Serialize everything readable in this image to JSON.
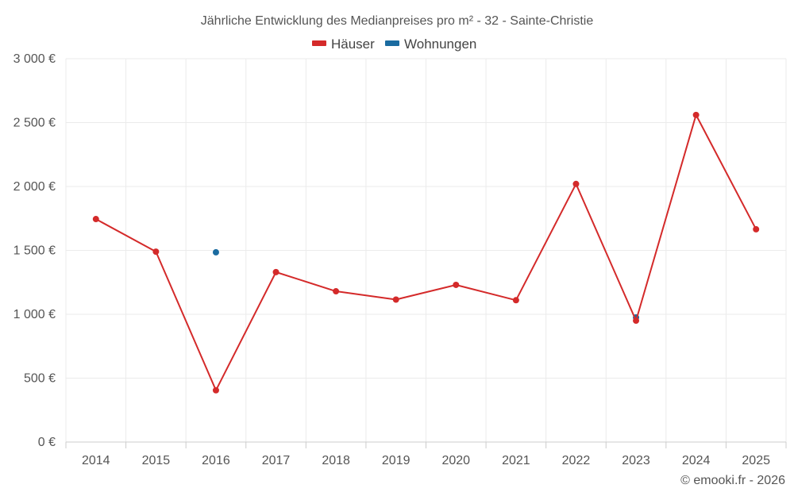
{
  "chart_data": {
    "type": "line",
    "title": "Jährliche Entwicklung des Medianpreises pro m² - 32 - Sainte-Christie",
    "categories": [
      "2014",
      "2015",
      "2016",
      "2017",
      "2018",
      "2019",
      "2020",
      "2021",
      "2022",
      "2023",
      "2024",
      "2025"
    ],
    "series": [
      {
        "name": "Häuser",
        "color": "#d42a2a",
        "values": [
          1745,
          1490,
          405,
          1330,
          1180,
          1115,
          1230,
          1110,
          2020,
          950,
          2560,
          1665
        ]
      },
      {
        "name": "Wohnungen",
        "color": "#1a6ba0",
        "values": [
          null,
          null,
          1485,
          null,
          null,
          null,
          null,
          null,
          null,
          975,
          null,
          null
        ]
      }
    ],
    "ylim": [
      0,
      3000
    ],
    "yticks": [
      0,
      500,
      1000,
      1500,
      2000,
      2500,
      3000
    ],
    "ytick_labels": [
      "0 €",
      "500 €",
      "1 000 €",
      "1 500 €",
      "2 000 €",
      "2 500 €",
      "3 000 €"
    ],
    "xlabel": "",
    "ylabel": "",
    "grid": true,
    "legend_position": "top-center"
  },
  "credit": "© emooki.fr - 2026"
}
